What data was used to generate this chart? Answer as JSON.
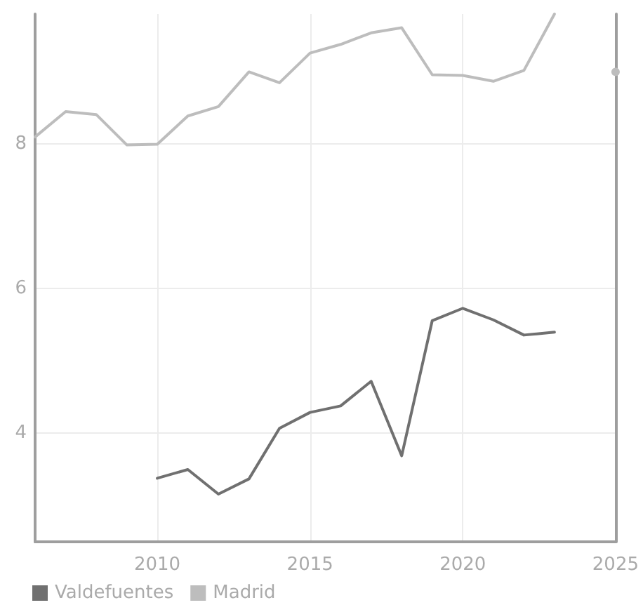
{
  "chart_data": {
    "type": "line",
    "x": [
      2006,
      2007,
      2008,
      2009,
      2010,
      2011,
      2012,
      2013,
      2014,
      2015,
      2016,
      2017,
      2018,
      2019,
      2020,
      2021,
      2022,
      2023,
      2024,
      2025
    ],
    "series": [
      {
        "name": "Valdefuentes",
        "color": "#707070",
        "values": [
          null,
          null,
          null,
          null,
          3.38,
          3.5,
          3.16,
          3.37,
          4.07,
          4.29,
          4.38,
          4.72,
          3.69,
          5.56,
          5.73,
          5.57,
          5.36,
          5.4,
          null,
          null
        ]
      },
      {
        "name": "Madrid",
        "color": "#bdbdbd",
        "values": [
          8.1,
          8.45,
          8.41,
          7.99,
          8.0,
          8.39,
          8.52,
          9.0,
          8.85,
          9.26,
          9.38,
          9.54,
          9.61,
          8.96,
          8.95,
          8.87,
          9.02,
          9.8,
          null,
          9.0
        ]
      }
    ],
    "xlim": [
      2006,
      2025
    ],
    "xticks": [
      2010,
      2015,
      2020,
      2025
    ],
    "ylim": [
      2.5,
      9.8
    ],
    "yticks": [
      4,
      6,
      8
    ],
    "grid": true,
    "legend": "bottom left",
    "marker": "none",
    "line_style": "solid"
  }
}
